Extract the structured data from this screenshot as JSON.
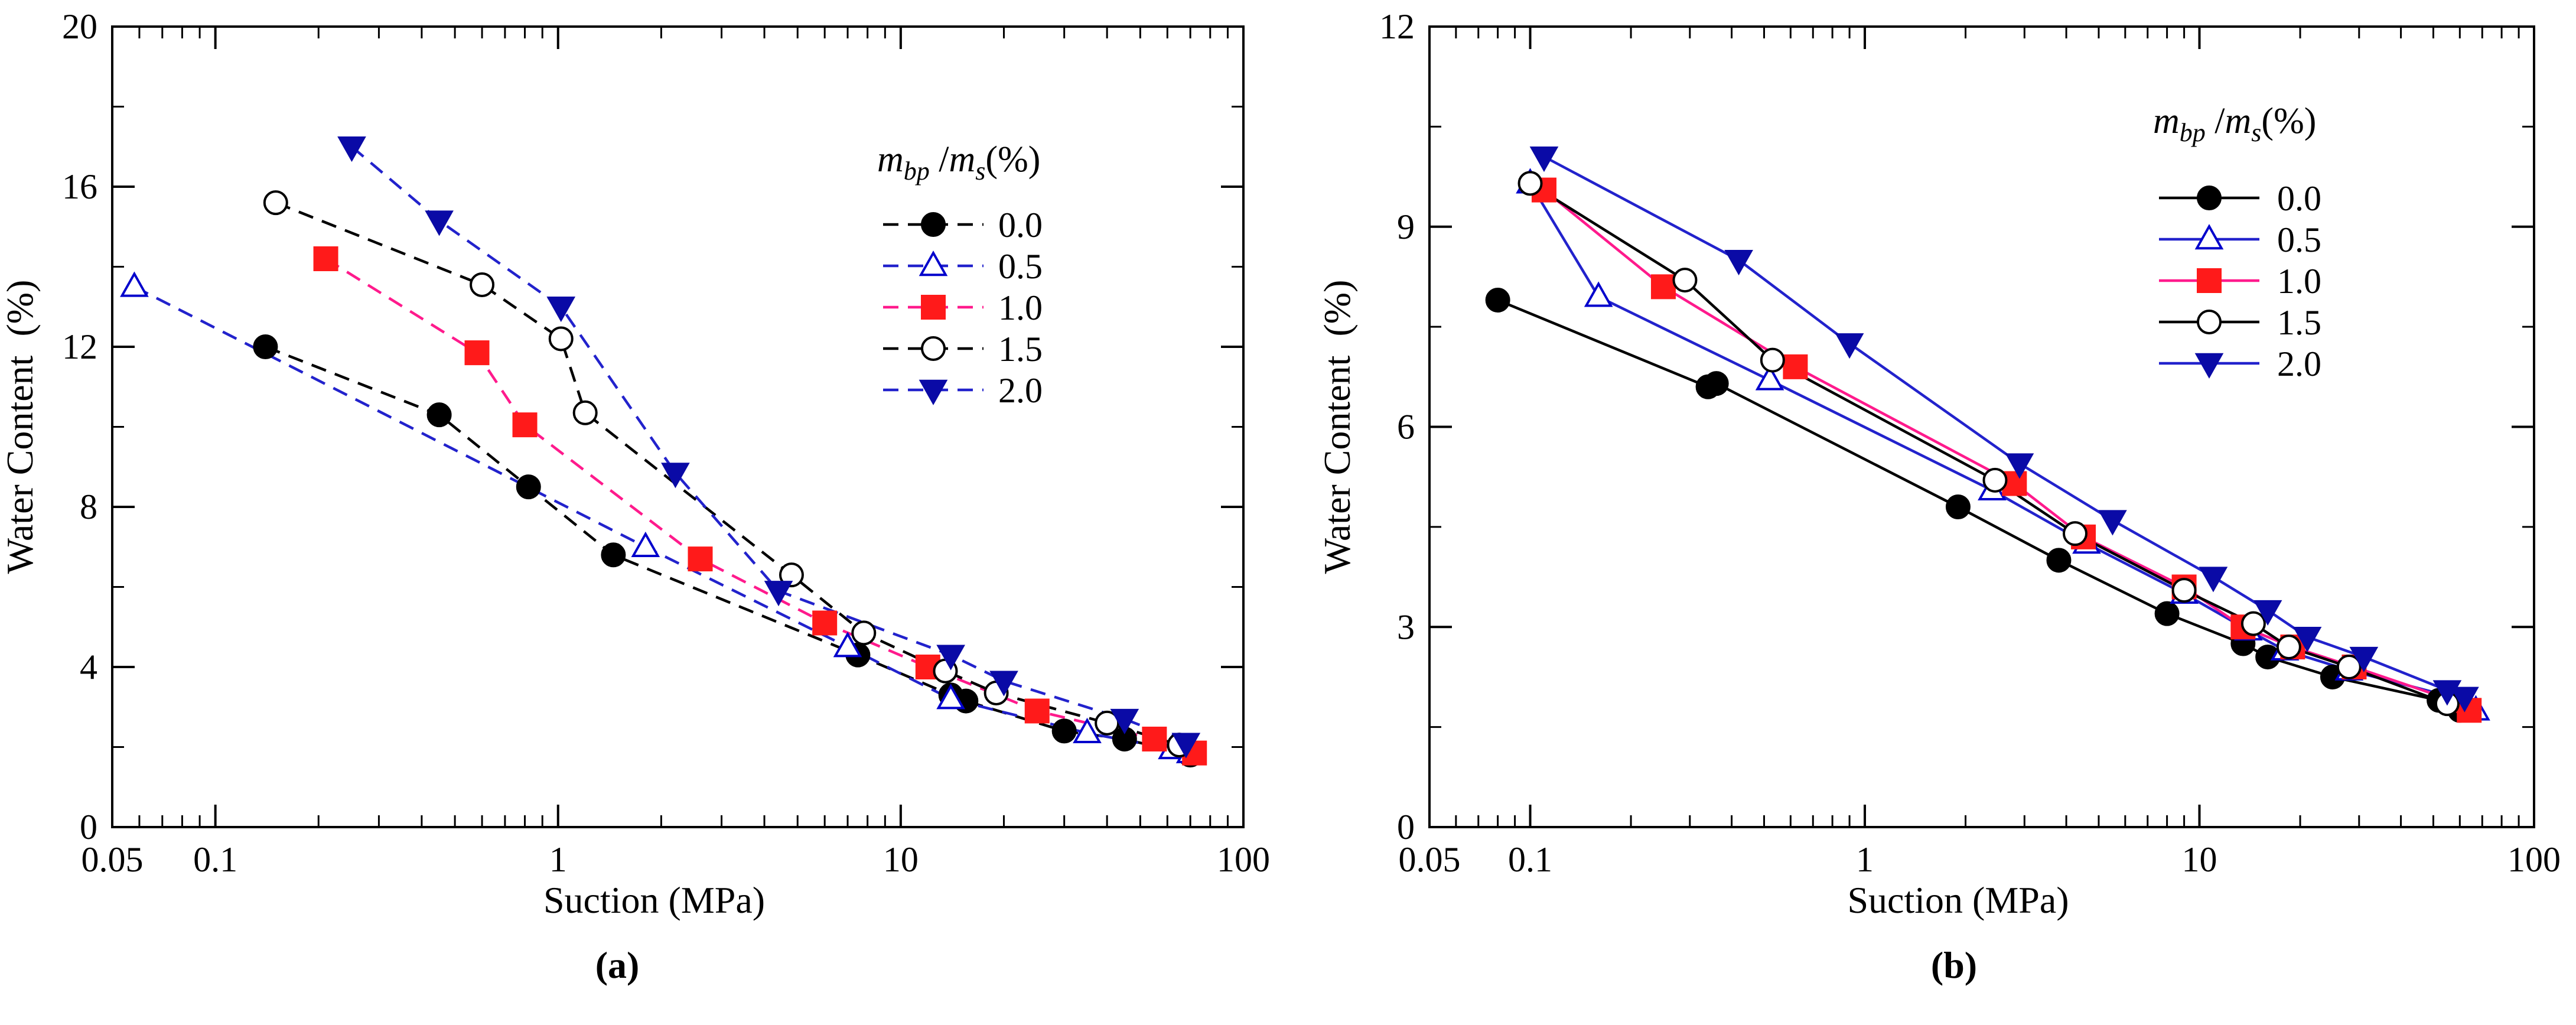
{
  "chart_data": [
    {
      "panel": "a",
      "caption": "(a)",
      "type": "scatter",
      "xscale": "log",
      "xlabel": "Suction (MPa)",
      "ylabel": "Water Content  (%)",
      "xlim": [
        0.05,
        100
      ],
      "ylim": [
        0,
        20
      ],
      "xticks": [
        {
          "v": 0.05,
          "t": "0.05"
        },
        {
          "v": 0.1,
          "t": "0.1"
        },
        {
          "v": 1,
          "t": "1"
        },
        {
          "v": 10,
          "t": "10"
        },
        {
          "v": 100,
          "t": "100"
        }
      ],
      "yticks": [
        {
          "v": 0,
          "t": "0"
        },
        {
          "v": 4,
          "t": "4"
        },
        {
          "v": 8,
          "t": "8"
        },
        {
          "v": 12,
          "t": "12"
        },
        {
          "v": 16,
          "t": "16"
        },
        {
          "v": 20,
          "t": "20"
        }
      ],
      "line_style": "dashed",
      "legend": {
        "title_var": "m",
        "title_sub1": "bp",
        "title_mid": " /",
        "title_sub2": "s",
        "title_pct": "(%)",
        "position": "top-right"
      },
      "series": [
        {
          "name": "0.0",
          "marker": "circle",
          "fill": "#000000",
          "stroke": "#000000",
          "line": "#000000",
          "points": [
            [
              0.14,
              12.0
            ],
            [
              0.45,
              10.3
            ],
            [
              0.82,
              8.5
            ],
            [
              1.45,
              6.8
            ],
            [
              7.5,
              4.3
            ],
            [
              14,
              3.3
            ],
            [
              15.5,
              3.15
            ],
            [
              30,
              2.4
            ],
            [
              45,
              2.2
            ],
            [
              70,
              1.8
            ]
          ]
        },
        {
          "name": "0.5",
          "marker": "triangle-up",
          "fill": "#ffffff",
          "stroke": "#0000cc",
          "line": "#2222cc",
          "points": [
            [
              0.058,
              13.5
            ],
            [
              1.8,
              7.0
            ],
            [
              7.0,
              4.5
            ],
            [
              14,
              3.2
            ],
            [
              35,
              2.35
            ],
            [
              62,
              1.95
            ],
            [
              70,
              1.85
            ]
          ]
        },
        {
          "name": "1.0",
          "marker": "square",
          "fill": "#ff1a1a",
          "stroke": "#ff1a1a",
          "line": "#ff1a8c",
          "points": [
            [
              0.21,
              14.2
            ],
            [
              0.58,
              11.85
            ],
            [
              0.8,
              10.05
            ],
            [
              2.6,
              6.7
            ],
            [
              6,
              5.1
            ],
            [
              12,
              4.0
            ],
            [
              25,
              2.9
            ],
            [
              55,
              2.2
            ],
            [
              72,
              1.85
            ]
          ]
        },
        {
          "name": "1.5",
          "marker": "circle",
          "fill": "#ffffff",
          "stroke": "#000000",
          "line": "#000000",
          "points": [
            [
              0.15,
              15.6
            ],
            [
              0.6,
              13.55
            ],
            [
              1.02,
              12.2
            ],
            [
              1.2,
              10.35
            ],
            [
              4.8,
              6.3
            ],
            [
              7.8,
              4.85
            ],
            [
              13.5,
              3.9
            ],
            [
              19,
              3.35
            ],
            [
              40,
              2.6
            ],
            [
              65,
              2.05
            ]
          ]
        },
        {
          "name": "2.0",
          "marker": "triangle-down",
          "fill": "#0a0aa6",
          "stroke": "#0a0aa6",
          "line": "#2222cc",
          "points": [
            [
              0.25,
              17.0
            ],
            [
              0.45,
              15.15
            ],
            [
              1.02,
              13.0
            ],
            [
              2.2,
              8.85
            ],
            [
              4.4,
              5.9
            ],
            [
              14,
              4.3
            ],
            [
              20,
              3.65
            ],
            [
              45,
              2.7
            ],
            [
              68,
              2.1
            ]
          ]
        }
      ]
    },
    {
      "panel": "b",
      "caption": "(b)",
      "type": "line",
      "xscale": "log",
      "xlabel": "Suction (MPa)",
      "ylabel": "Water Content  (%)",
      "xlim": [
        0.05,
        100
      ],
      "ylim": [
        0,
        12
      ],
      "xticks": [
        {
          "v": 0.05,
          "t": "0.05"
        },
        {
          "v": 0.1,
          "t": "0.1"
        },
        {
          "v": 1,
          "t": "1"
        },
        {
          "v": 10,
          "t": "10"
        },
        {
          "v": 100,
          "t": "100"
        }
      ],
      "yticks": [
        {
          "v": 0,
          "t": "0"
        },
        {
          "v": 3,
          "t": "3"
        },
        {
          "v": 6,
          "t": "6"
        },
        {
          "v": 9,
          "t": "9"
        },
        {
          "v": 12,
          "t": "12"
        }
      ],
      "line_style": "solid",
      "legend": {
        "title_var": "m",
        "title_sub1": "bp",
        "title_mid": " /",
        "title_sub2": "s",
        "title_pct": "(%)",
        "position": "top-right"
      },
      "series": [
        {
          "name": "0.0",
          "marker": "circle",
          "fill": "#000000",
          "stroke": "#000000",
          "line": "#000000",
          "points": [
            [
              0.08,
              7.9
            ],
            [
              0.34,
              6.6
            ],
            [
              0.36,
              6.65
            ],
            [
              1.9,
              4.8
            ],
            [
              3.8,
              4.0
            ],
            [
              8,
              3.2
            ],
            [
              13.5,
              2.75
            ],
            [
              16,
              2.55
            ],
            [
              25,
              2.25
            ],
            [
              52,
              1.9
            ],
            [
              60,
              1.75
            ]
          ]
        },
        {
          "name": "0.5",
          "marker": "triangle-up",
          "fill": "#ffffff",
          "stroke": "#0000cc",
          "line": "#2222cc",
          "points": [
            [
              0.1,
              9.65
            ],
            [
              0.16,
              7.95
            ],
            [
              0.52,
              6.7
            ],
            [
              2.4,
              5.05
            ],
            [
              4.6,
              4.25
            ],
            [
              9,
              3.5
            ],
            [
              14,
              2.95
            ],
            [
              18,
              2.65
            ],
            [
              28,
              2.35
            ],
            [
              57,
              1.95
            ],
            [
              67,
              1.75
            ]
          ]
        },
        {
          "name": "1.0",
          "marker": "square",
          "fill": "#ff1a1a",
          "stroke": "#ff1a1a",
          "line": "#ff1a8c",
          "points": [
            [
              0.11,
              9.55
            ],
            [
              0.25,
              8.1
            ],
            [
              0.62,
              6.9
            ],
            [
              2.8,
              5.15
            ],
            [
              4.5,
              4.35
            ],
            [
              9,
              3.6
            ],
            [
              13.5,
              3.0
            ],
            [
              19,
              2.7
            ],
            [
              29,
              2.4
            ],
            [
              57,
              1.9
            ],
            [
              64,
              1.75
            ]
          ]
        },
        {
          "name": "1.5",
          "marker": "circle",
          "fill": "#ffffff",
          "stroke": "#000000",
          "line": "#000000",
          "points": [
            [
              0.1,
              9.65
            ],
            [
              0.29,
              8.2
            ],
            [
              0.53,
              7.0
            ],
            [
              2.45,
              5.2
            ],
            [
              4.25,
              4.4
            ],
            [
              9,
              3.55
            ],
            [
              14.5,
              3.05
            ],
            [
              18.5,
              2.7
            ],
            [
              28,
              2.4
            ],
            [
              55,
              1.85
            ]
          ]
        },
        {
          "name": "2.0",
          "marker": "triangle-down",
          "fill": "#0a0aa6",
          "stroke": "#0a0aa6",
          "line": "#2222cc",
          "points": [
            [
              0.11,
              10.05
            ],
            [
              0.42,
              8.5
            ],
            [
              0.9,
              7.25
            ],
            [
              2.9,
              5.45
            ],
            [
              5.5,
              4.6
            ],
            [
              11,
              3.75
            ],
            [
              16,
              3.25
            ],
            [
              21,
              2.85
            ],
            [
              31,
              2.55
            ],
            [
              55,
              2.05
            ],
            [
              62,
              1.95
            ]
          ]
        }
      ]
    }
  ]
}
